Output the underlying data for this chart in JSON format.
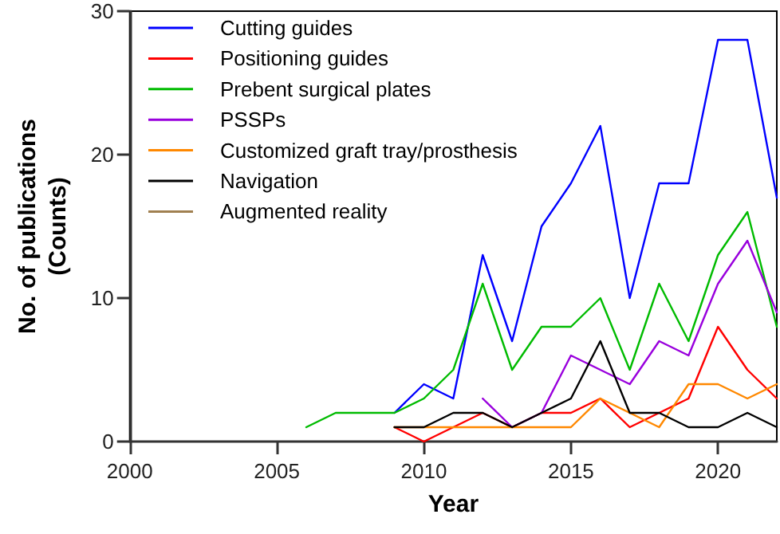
{
  "chart_data": {
    "type": "line",
    "xlabel": "Year",
    "ylabel": "No. of publications\n(Counts)",
    "x": [
      2006,
      2007,
      2008,
      2009,
      2010,
      2011,
      2012,
      2013,
      2014,
      2015,
      2016,
      2017,
      2018,
      2019,
      2020,
      2021,
      2022
    ],
    "series": [
      {
        "name": "Cutting guides",
        "color": "#0000ff",
        "values": [
          null,
          null,
          null,
          2,
          4,
          3,
          13,
          7,
          15,
          18,
          22,
          10,
          18,
          18,
          28,
          28,
          17
        ]
      },
      {
        "name": "Positioning guides",
        "color": "#ff0000",
        "values": [
          null,
          null,
          null,
          1,
          0,
          1,
          2,
          1,
          2,
          2,
          3,
          1,
          2,
          3,
          8,
          5,
          3
        ]
      },
      {
        "name": "Prebent surgical plates",
        "color": "#00bb00",
        "values": [
          1,
          2,
          2,
          2,
          3,
          5,
          11,
          5,
          8,
          8,
          10,
          5,
          11,
          7,
          13,
          16,
          8
        ]
      },
      {
        "name": "PSSPs",
        "color": "#9900dd",
        "values": [
          null,
          null,
          null,
          null,
          null,
          null,
          3,
          1,
          2,
          6,
          5,
          4,
          7,
          6,
          11,
          14,
          9
        ]
      },
      {
        "name": "Customized graft tray/prosthesis",
        "color": "#ff8800",
        "values": [
          null,
          null,
          null,
          1,
          1,
          1,
          1,
          1,
          1,
          1,
          3,
          2,
          1,
          4,
          4,
          3,
          4
        ]
      },
      {
        "name": "Navigation",
        "color": "#000000",
        "values": [
          null,
          null,
          null,
          1,
          1,
          2,
          2,
          1,
          2,
          3,
          7,
          2,
          2,
          1,
          1,
          2,
          1
        ]
      },
      {
        "name": "Augmented reality",
        "color": "#a08050",
        "values": [
          null,
          null,
          null,
          null,
          null,
          null,
          null,
          null,
          null,
          null,
          null,
          null,
          null,
          null,
          null,
          null,
          null
        ]
      }
    ],
    "xlim": [
      2000,
      2022
    ],
    "xticks": [
      2000,
      2005,
      2010,
      2015,
      2020
    ],
    "ylim": [
      0,
      30
    ],
    "yticks": [
      0,
      10,
      20,
      30
    ],
    "grid": false,
    "legend": "top left",
    "marker": "none",
    "line_style": "solid"
  }
}
